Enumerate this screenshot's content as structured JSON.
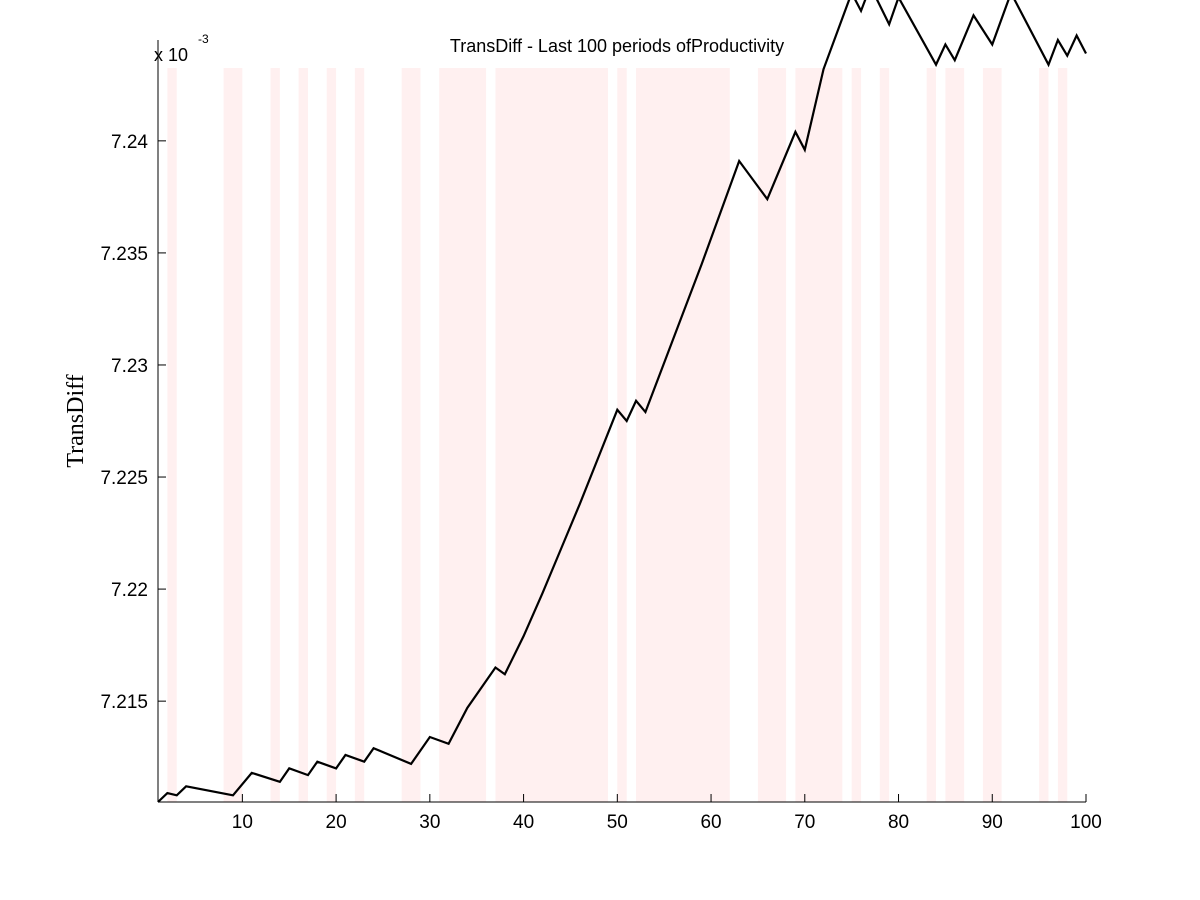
{
  "chart_data": {
    "type": "line",
    "title": "TransDiff - Last 100 periods ofProductivity",
    "xlabel": "",
    "ylabel": "TransDiff",
    "y_multiplier": {
      "base": "x 10",
      "exponent": "-3"
    },
    "xlim": [
      1,
      100
    ],
    "ylim": [
      7.2105,
      7.2445
    ],
    "x_ticks": [
      10,
      20,
      30,
      40,
      50,
      60,
      70,
      80,
      90,
      100
    ],
    "x_tick_labels": [
      "10",
      "20",
      "30",
      "40",
      "50",
      "60",
      "70",
      "80",
      "90",
      "100"
    ],
    "y_ticks": [
      7.215,
      7.22,
      7.225,
      7.23,
      7.235,
      7.24
    ],
    "y_tick_labels": [
      "7.215",
      "7.22",
      "7.225",
      "7.23",
      "7.235",
      "7.24"
    ],
    "grid": false,
    "shaded_regions": [
      [
        2,
        3
      ],
      [
        8,
        10
      ],
      [
        13,
        14
      ],
      [
        16,
        17
      ],
      [
        19,
        20
      ],
      [
        22,
        23
      ],
      [
        27,
        29
      ],
      [
        31,
        36
      ],
      [
        37,
        49
      ],
      [
        50,
        51
      ],
      [
        52,
        62
      ],
      [
        65,
        68
      ],
      [
        69,
        74
      ],
      [
        75,
        76
      ],
      [
        78,
        79
      ],
      [
        83,
        84
      ],
      [
        85,
        87
      ],
      [
        89,
        91
      ],
      [
        95,
        96
      ],
      [
        97,
        98
      ]
    ],
    "shade_color": "#fff0f0",
    "line_color": "#000000",
    "series": [
      {
        "x": [
          1,
          2,
          3,
          4,
          9,
          11,
          14,
          15,
          17,
          18,
          20,
          21,
          23,
          24,
          28,
          30,
          32,
          34,
          37,
          38,
          40,
          42,
          44,
          46,
          48,
          50,
          51,
          52,
          53,
          55,
          57,
          59,
          61,
          63,
          66,
          69,
          70,
          72,
          75,
          76,
          77,
          79,
          80,
          84,
          85,
          86,
          88,
          90,
          92,
          96,
          97,
          98,
          99,
          100
        ],
        "y": [
          7.2105,
          7.2109,
          7.2108,
          7.2112,
          7.2108,
          7.2118,
          7.2114,
          7.212,
          7.2117,
          7.2123,
          7.212,
          7.2126,
          7.2123,
          7.2129,
          7.2122,
          7.2134,
          7.2131,
          7.2147,
          7.2165,
          7.2162,
          7.2179,
          7.2198,
          7.2218,
          7.2238,
          7.2259,
          7.228,
          7.2275,
          7.2284,
          7.2279,
          7.2301,
          7.2323,
          7.2345,
          7.2368,
          7.2391,
          7.2374,
          7.2404,
          7.2396,
          7.2432,
          7.2466,
          7.2458,
          7.2469,
          7.2452,
          7.2464,
          7.2434,
          7.2443,
          7.2436,
          7.2456,
          7.2443,
          7.2466,
          7.2434,
          7.2445,
          7.2438,
          7.2447,
          7.2439
        ]
      }
    ]
  }
}
